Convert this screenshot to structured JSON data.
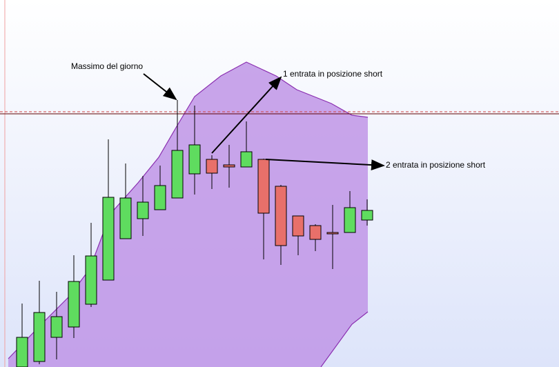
{
  "chart_data": {
    "type": "candlestick",
    "ylim": [
      0,
      532
    ],
    "up_color": "#5fdc5f",
    "down_color": "#e8706a",
    "open": [
      0,
      8,
      43,
      58,
      91,
      126,
      186,
      215,
      228,
      245,
      280,
      301,
      292,
      290,
      301,
      262,
      219,
      205,
      194,
      195,
      213
    ],
    "high": [
      92,
      125,
      109,
      162,
      209,
      330,
      295,
      277,
      292,
      387,
      379,
      307,
      322,
      356,
      302,
      264,
      219,
      207,
      235,
      255,
      243
    ],
    "low": [
      0,
      4,
      11,
      42,
      87,
      126,
      186,
      190,
      228,
      245,
      250,
      258,
      260,
      290,
      156,
      148,
      162,
      168,
      142,
      195,
      205
    ],
    "close": [
      43,
      79,
      73,
      124,
      161,
      246,
      245,
      239,
      263,
      314,
      322,
      281,
      289,
      312,
      223,
      176,
      190,
      185,
      193,
      231,
      227
    ],
    "reference_lines": [
      {
        "value": 370,
        "color": "#d04040",
        "dashed": true
      },
      {
        "value": 367,
        "color": "#600000",
        "dashed": false
      }
    ],
    "annotations": [
      "Massimo del giorno",
      "1 entrata in posizione short",
      "2 entrata in posizione short"
    ]
  }
}
